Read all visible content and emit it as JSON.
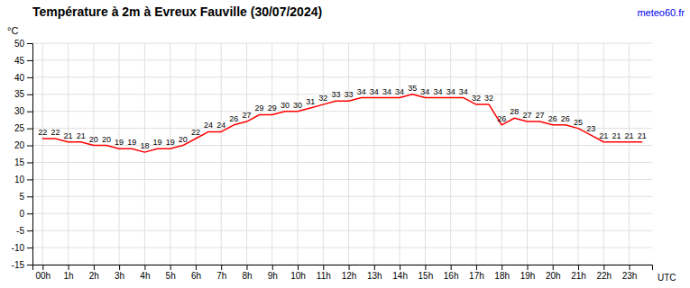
{
  "chart_data": {
    "type": "line",
    "title": "Température à 2m à Evreux Fauville (30/07/2024)",
    "ylabel": "°C",
    "xlabel": "UTC",
    "annotations": [
      {
        "text": "meteo60.fr",
        "color": "#0000ee"
      }
    ],
    "x": [
      0.0,
      0.5,
      1.0,
      1.5,
      2.0,
      2.5,
      3.0,
      3.5,
      4.0,
      4.5,
      5.0,
      5.5,
      6.0,
      6.5,
      7.0,
      7.5,
      8.0,
      8.5,
      9.0,
      9.5,
      10.0,
      10.5,
      11.0,
      11.5,
      12.0,
      12.5,
      13.0,
      13.5,
      14.0,
      14.5,
      15.0,
      15.5,
      16.0,
      16.5,
      17.0,
      17.5,
      18.0,
      18.5,
      19.0,
      19.5,
      20.0,
      20.5,
      21.0,
      21.5,
      22.0,
      22.5,
      23.0,
      23.5
    ],
    "values": [
      22,
      22,
      21,
      21,
      20,
      20,
      19,
      19,
      18,
      19,
      19,
      20,
      22,
      24,
      24,
      26,
      27,
      29,
      29,
      30,
      30,
      31,
      32,
      33,
      33,
      34,
      34,
      34,
      34,
      35,
      34,
      34,
      34,
      34,
      32,
      32,
      26,
      28,
      27,
      27,
      26,
      26,
      25,
      23,
      21,
      21,
      21,
      21
    ],
    "color": "#ff0000",
    "xlim": [
      -0.4,
      23.9
    ],
    "xticks": [
      {
        "value": 0,
        "label": "00h"
      },
      {
        "value": 1,
        "label": "1h"
      },
      {
        "value": 2,
        "label": "2h"
      },
      {
        "value": 3,
        "label": "3h"
      },
      {
        "value": 4,
        "label": "4h"
      },
      {
        "value": 5,
        "label": "5h"
      },
      {
        "value": 6,
        "label": "6h"
      },
      {
        "value": 7,
        "label": "7h"
      },
      {
        "value": 8,
        "label": "8h"
      },
      {
        "value": 9,
        "label": "9h"
      },
      {
        "value": 10,
        "label": "10h"
      },
      {
        "value": 11,
        "label": "11h"
      },
      {
        "value": 12,
        "label": "12h"
      },
      {
        "value": 13,
        "label": "13h"
      },
      {
        "value": 14,
        "label": "14h"
      },
      {
        "value": 15,
        "label": "15h"
      },
      {
        "value": 16,
        "label": "16h"
      },
      {
        "value": 17,
        "label": "17h"
      },
      {
        "value": 18,
        "label": "18h"
      },
      {
        "value": 19,
        "label": "19h"
      },
      {
        "value": 20,
        "label": "20h"
      },
      {
        "value": 21,
        "label": "21h"
      },
      {
        "value": 22,
        "label": "22h"
      },
      {
        "value": 23,
        "label": "23h"
      }
    ],
    "ylim": [
      -15,
      50
    ],
    "yticks": [
      -15,
      -10,
      -5,
      0,
      5,
      10,
      15,
      20,
      25,
      30,
      35,
      40,
      45,
      50
    ],
    "grid": true,
    "data_labels": true
  }
}
